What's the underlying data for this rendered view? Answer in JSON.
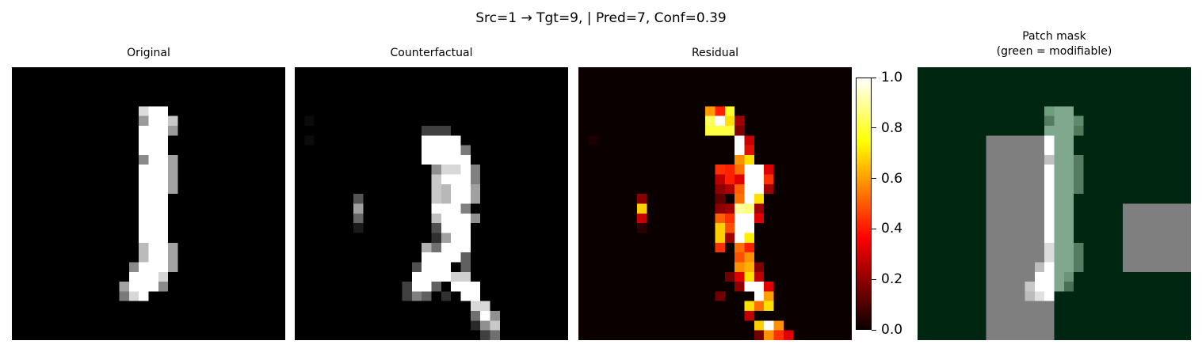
{
  "figure": {
    "suptitle": "Src=1 → Tgt=9, | Pred=7, Conf=0.39"
  },
  "panels": {
    "original": {
      "title": "Original"
    },
    "counterfactual": {
      "title": "Counterfactual"
    },
    "residual": {
      "title": "Residual"
    },
    "mask": {
      "title_line1": "Patch mask",
      "title_line2": "(green = modifiable)"
    }
  },
  "colorbar": {
    "colormap": "hot",
    "range": [
      0.0,
      1.0
    ],
    "ticks": [
      "0.0",
      "0.2",
      "0.4",
      "0.6",
      "0.8",
      "1.0"
    ]
  },
  "colors": {
    "mask_background": "#002510",
    "mask_modifiable_patch": "#7f7f7f"
  }
}
